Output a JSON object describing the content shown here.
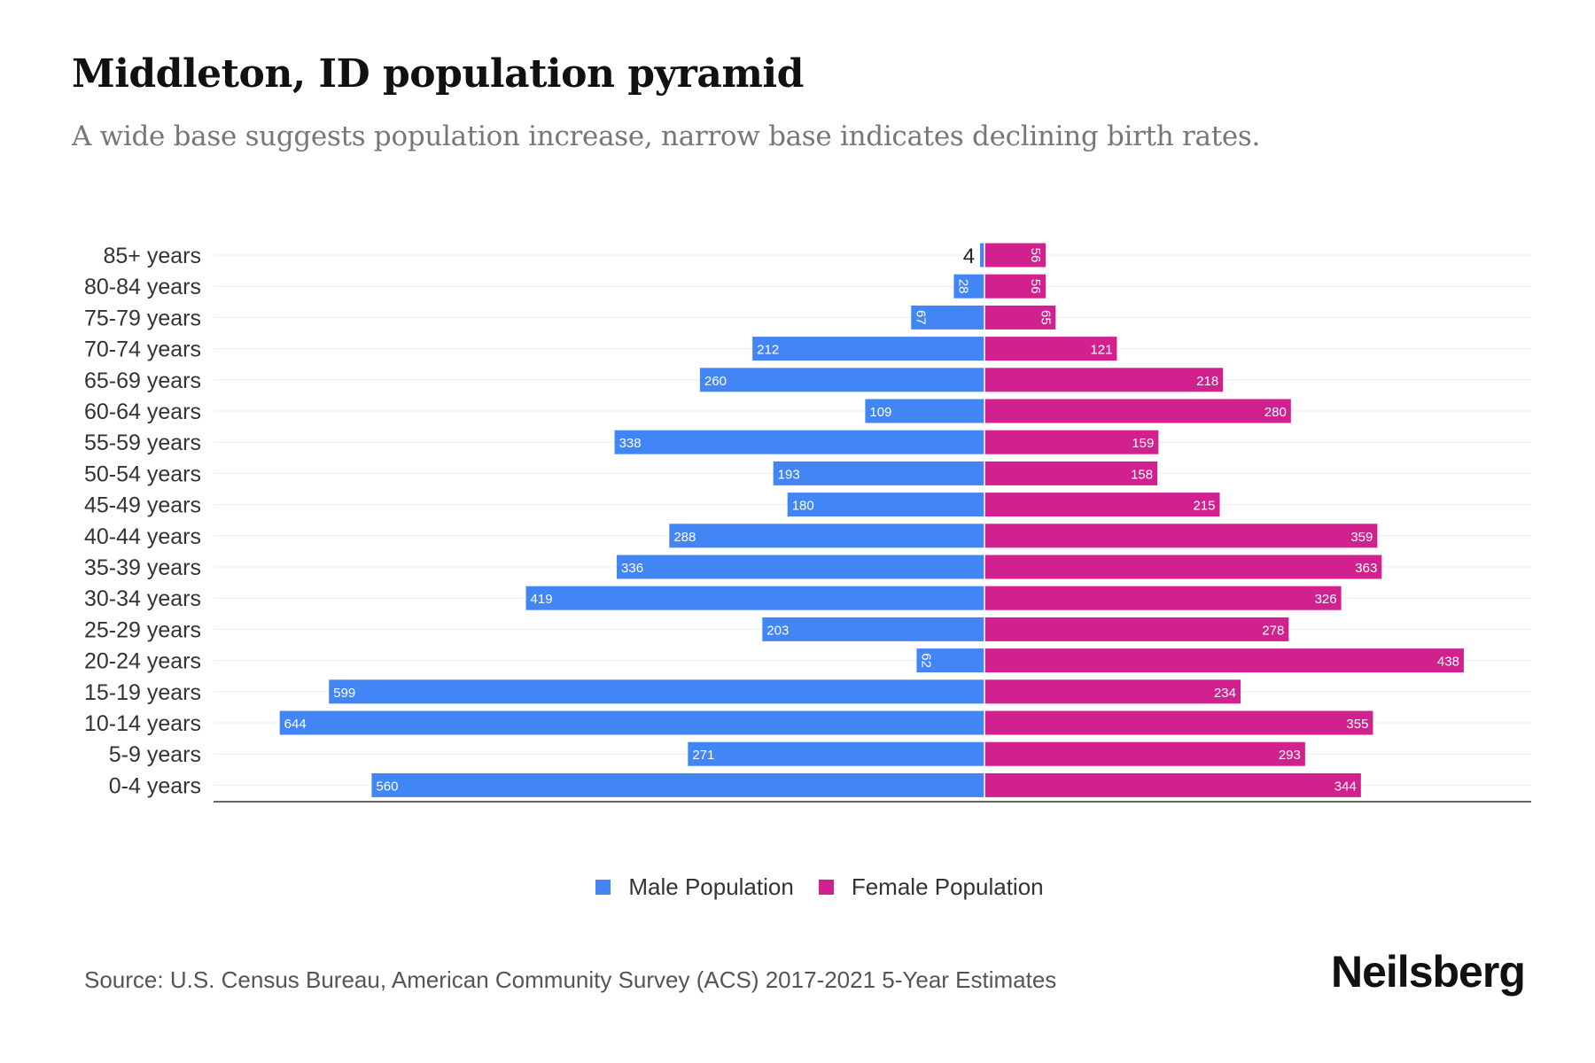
{
  "title": "Middleton, ID population pyramid",
  "subtitle": "A wide base suggests population increase, narrow base indicates declining birth rates.",
  "source": "Source: U.S. Census Bureau, American Community Survey (ACS) 2017-2021 5-Year Estimates",
  "logo": "Neilsberg",
  "colors": {
    "male": "#4285f4",
    "female": "#d0218f"
  },
  "chart_data": {
    "type": "bar",
    "orientation": "horizontal-pyramid",
    "categories": [
      "85+ years",
      "80-84 years",
      "75-79 years",
      "70-74 years",
      "65-69 years",
      "60-64 years",
      "55-59 years",
      "50-54 years",
      "45-49 years",
      "40-44 years",
      "35-39 years",
      "30-34 years",
      "25-29 years",
      "20-24 years",
      "15-19 years",
      "10-14 years",
      "5-9 years",
      "0-4 years"
    ],
    "series": [
      {
        "name": "Male Population",
        "values": [
          4,
          28,
          67,
          212,
          260,
          109,
          338,
          193,
          180,
          288,
          336,
          419,
          203,
          62,
          599,
          644,
          271,
          560
        ]
      },
      {
        "name": "Female Population",
        "values": [
          56,
          56,
          65,
          121,
          218,
          280,
          159,
          158,
          215,
          359,
          363,
          326,
          278,
          438,
          234,
          355,
          293,
          344
        ]
      }
    ],
    "legend_position": "bottom",
    "grid": true
  }
}
